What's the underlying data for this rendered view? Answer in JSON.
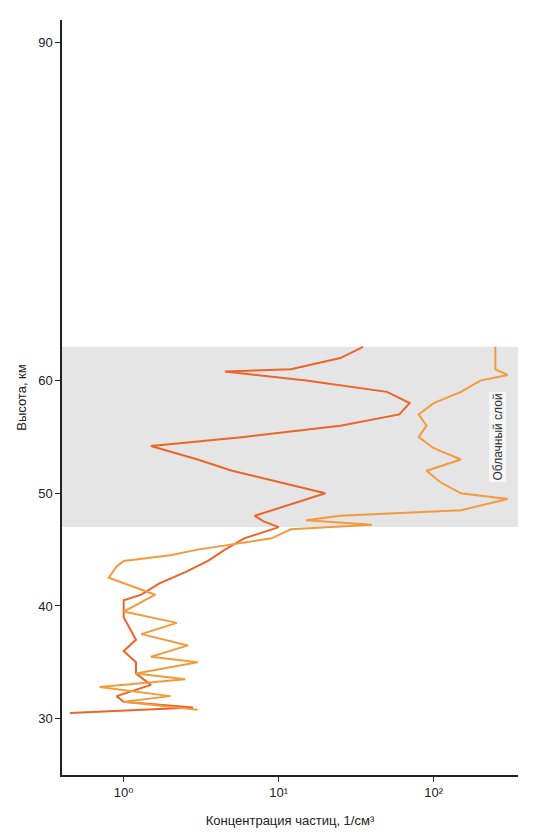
{
  "chart_data": {
    "type": "line",
    "log": "x",
    "grid": false,
    "x_label": "Концентрация частиц, 1/см³",
    "y_label": "Высота, км",
    "xlim": [
      0.4,
      350
    ],
    "xticks": [
      {
        "value": 1,
        "label": "10⁰"
      },
      {
        "value": 10,
        "label": "10¹"
      },
      {
        "value": 100,
        "label": "10²"
      }
    ],
    "ylim": [
      25,
      92
    ],
    "yticks": [
      30,
      40,
      50,
      60,
      90
    ],
    "cloud_layer": {
      "label": "Облачный слой",
      "ylim": [
        47,
        63
      ]
    },
    "series": [
      {
        "color": "#ec6428",
        "x": [
          0.45,
          2.8,
          1.0,
          0.9,
          1.5,
          1.2,
          1.2,
          1.0,
          1.2,
          1.1,
          1.0,
          1.0,
          1.0,
          1.3,
          1.7,
          2.5,
          3.5,
          4.5,
          6,
          10,
          8,
          7,
          12,
          20,
          10,
          5,
          3,
          1.5,
          6,
          25,
          60,
          70,
          50,
          15,
          4.5,
          12,
          25,
          35
        ],
        "y": [
          30.5,
          31,
          31.5,
          32,
          33,
          34,
          35,
          36,
          37,
          38,
          39,
          40,
          40.5,
          41,
          42,
          43,
          44,
          45,
          46,
          47,
          47.5,
          48,
          49,
          50,
          51,
          52,
          53,
          54.2,
          55,
          56,
          57,
          58,
          59,
          60,
          60.8,
          61,
          62,
          63
        ]
      },
      {
        "color": "#f39a3c",
        "x": [
          3,
          1.0,
          2,
          0.7,
          2.5,
          1.2,
          3,
          1.5,
          2.6,
          1.3,
          2.2,
          1.0,
          1.6,
          0.8,
          0.9,
          1.0,
          2,
          3,
          9,
          12,
          40,
          15,
          25,
          150,
          300,
          150,
          110,
          90,
          150,
          100,
          80,
          90,
          80,
          100,
          150,
          200,
          300,
          250,
          250,
          250
        ],
        "y": [
          30.8,
          31.5,
          32,
          32.8,
          33.5,
          34,
          35,
          35.5,
          36.5,
          37.5,
          38.5,
          39.5,
          41,
          42.5,
          43.5,
          44,
          44.5,
          45,
          46,
          46.8,
          47.2,
          47.6,
          48,
          48.5,
          49.5,
          50,
          51,
          52,
          53,
          54,
          55,
          56,
          57,
          58,
          59,
          60,
          60.5,
          61,
          62,
          63
        ]
      }
    ]
  }
}
